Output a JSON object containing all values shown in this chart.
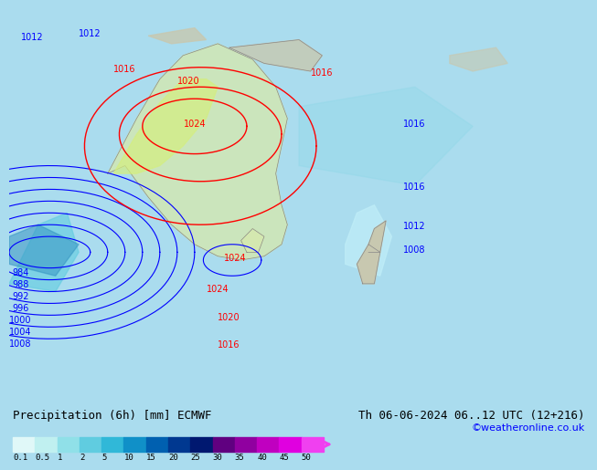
{
  "title_left": "Precipitation (6h) [mm] ECMWF",
  "title_right": "Th 06-06-2024 06..12 UTC (12+216)",
  "copyright": "©weatheronline.co.uk",
  "colorbar_levels": [
    0.1,
    0.5,
    1,
    2,
    5,
    10,
    15,
    20,
    25,
    30,
    35,
    40,
    45,
    50
  ],
  "colorbar_colors": [
    "#e0f8f8",
    "#c0f0f0",
    "#90e0e8",
    "#60cce0",
    "#30b8d8",
    "#1090c8",
    "#0060b0",
    "#003890",
    "#001870",
    "#600080",
    "#9000a0",
    "#c000c0",
    "#e000e0",
    "#f040f0"
  ],
  "bg_color": "#87CEEB",
  "map_bg": "#aadcee",
  "label_fontsize": 9,
  "title_fontsize": 9
}
